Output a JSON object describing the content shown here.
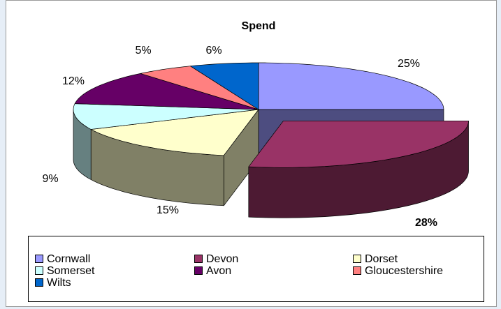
{
  "chart_data": {
    "type": "pie",
    "title": "Spend",
    "categories": [
      "Cornwall",
      "Devon",
      "Dorset",
      "Somerset",
      "Avon",
      "Gloucestershire",
      "Wilts"
    ],
    "values": [
      25,
      28,
      15,
      9,
      12,
      5,
      6
    ],
    "value_labels": [
      "25%",
      "28%",
      "15%",
      "9%",
      "12%",
      "5%",
      "6%"
    ],
    "colors": [
      "#9999ff",
      "#993366",
      "#ffffcc",
      "#ccffff",
      "#660066",
      "#ff8080",
      "#0066cc"
    ],
    "exploded": [
      false,
      true,
      false,
      false,
      false,
      false,
      false
    ],
    "legend": "bottom"
  }
}
